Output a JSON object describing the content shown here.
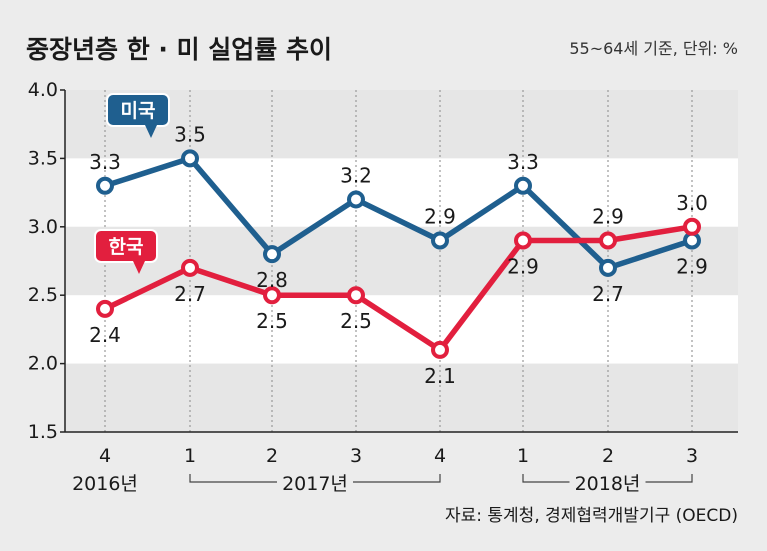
{
  "title": "중장년층 한 · 미 실업률 추이",
  "note": "55~64세 기준, 단위: %",
  "source": "자료: 통계청, 경제협력개발기구 (OECD)",
  "colors": {
    "us": "#1f5f8f",
    "korea": "#e21f3e",
    "band_light": "#ffffff",
    "band_dark": "#e6e6e6",
    "background": "#ececec"
  },
  "chart_data": {
    "type": "line",
    "title": "중장년층 한 · 미 실업률 추이",
    "unit": "%",
    "categories": [
      "4",
      "1",
      "2",
      "3",
      "4",
      "1",
      "2",
      "3"
    ],
    "year_groups": [
      {
        "label": "2016년",
        "start": 0,
        "end": 0
      },
      {
        "label": "2017년",
        "start": 1,
        "end": 4
      },
      {
        "label": "2018년",
        "start": 5,
        "end": 7
      }
    ],
    "series": [
      {
        "name": "미국",
        "key": "us",
        "values": [
          3.3,
          3.5,
          2.8,
          3.2,
          2.9,
          3.3,
          2.7,
          2.9
        ],
        "labels": [
          "3.3",
          "3.5",
          "2.8",
          "3.2",
          "2.9",
          "3.3",
          "2.7",
          "2.9"
        ]
      },
      {
        "name": "한국",
        "key": "korea",
        "values": [
          2.4,
          2.7,
          2.5,
          2.5,
          2.1,
          2.9,
          2.9,
          3.0
        ],
        "labels": [
          "2.4",
          "2.7",
          "2.5",
          "2.5",
          "2.1",
          "2.9",
          "2.9",
          "3.0"
        ]
      }
    ],
    "yticks": [
      "4.0",
      "3.5",
      "3.0",
      "2.5",
      "2.0",
      "1.5"
    ],
    "ylim": [
      1.5,
      4.0
    ],
    "grid": "alternating horizontal bands",
    "legend": "callout labels on lines"
  }
}
